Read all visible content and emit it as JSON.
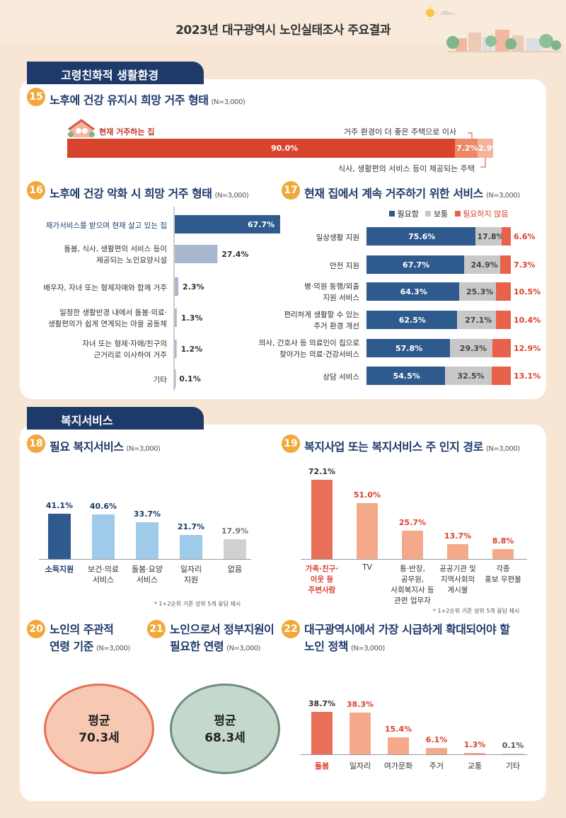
{
  "page_title": "2023년 대구광역시 노인실태조사 주요결과",
  "sections": {
    "s1": "고령친화적 생활환경",
    "s2": "복지서비스"
  },
  "colors": {
    "navy": "#1e3a6a",
    "blue": "#2e5a8e",
    "gray": "#c8c8c8",
    "red": "#e8614b",
    "orange": "#f2a83b",
    "salmon": "#f4a98a",
    "lightblue": "#9ecbea"
  },
  "q15": {
    "num": "15",
    "title": "노후에 건강 유지시 희망 거주 형태",
    "n": "(N=3,000)",
    "label_home": "현재 거주하는 집",
    "label_better": "거주 환경이 더 좋은 주택으로 이사",
    "label_service": "식사, 생활편의 서비스 등이 제공되는 주택",
    "values_text": [
      "90.0%",
      "7.2%",
      "2.9%"
    ]
  },
  "q16": {
    "num": "16",
    "title": "노후에 건강 악화 시 희망 거주 형태",
    "n": "(N=3,000)",
    "items": [
      {
        "label1": "재가서비스를 받으며 현재 살고 있는 집",
        "label2": "",
        "value": "67.7%"
      },
      {
        "label1": "돌봄, 식사, 생활편의 서비스 등이",
        "label2": "제공되는 노인요양시설",
        "value": "27.4%"
      },
      {
        "label1": "배우자, 자녀 또는 형제자매와 함께 거주",
        "label2": "",
        "value": "2.3%"
      },
      {
        "label1": "일정한 생활반경 내에서 돌봄·의료·",
        "label2": "생활편의가 쉽게 연계되는 마을 공동체",
        "value": "1.3%"
      },
      {
        "label1": "자녀 또는 형제·자매/친구의",
        "label2": "근거리로 이사하여 거주",
        "value": "1.2%"
      },
      {
        "label1": "기타",
        "label2": "",
        "value": "0.1%"
      }
    ]
  },
  "q17": {
    "num": "17",
    "title": "현재 집에서 계속 거주하기 위한 서비스",
    "n": "(N=3,000)",
    "legend": [
      "필요함",
      "보통",
      "필요하지 않음"
    ],
    "rows": [
      {
        "label1": "일상생활 지원",
        "label2": "",
        "v": [
          "75.6%",
          "17.8%",
          "6.6%"
        ]
      },
      {
        "label1": "안전 지원",
        "label2": "",
        "v": [
          "67.7%",
          "24.9%",
          "7.3%"
        ]
      },
      {
        "label1": "병·의원 동행/외출",
        "label2": "지원 서비스",
        "v": [
          "64.3%",
          "25.3%",
          "10.5%"
        ]
      },
      {
        "label1": "편리하게 생활할 수 있는",
        "label2": "주거 환경 개선",
        "v": [
          "62.5%",
          "27.1%",
          "10.4%"
        ]
      },
      {
        "label1": "의사, 간호사 등 의료인이 집으로",
        "label2": "찾아가는 의료·건강서비스",
        "v": [
          "57.8%",
          "29.3%",
          "12.9%"
        ]
      },
      {
        "label1": "상담 서비스",
        "label2": "",
        "v": [
          "54.5%",
          "32.5%",
          "13.1%"
        ]
      }
    ]
  },
  "q18": {
    "num": "18",
    "title": "필요 복지서비스",
    "n": "(N=3,000)",
    "items": [
      {
        "label1": "소득지원",
        "label2": "",
        "value": "41.1%"
      },
      {
        "label1": "보건·의료",
        "label2": "서비스",
        "value": "40.6%"
      },
      {
        "label1": "돌봄·요양",
        "label2": "서비스",
        "value": "33.7%"
      },
      {
        "label1": "일자리",
        "label2": "지원",
        "value": "21.7%"
      },
      {
        "label1": "없음",
        "label2": "",
        "value": "17.9%"
      }
    ],
    "note": "* 1+2순위 기준 상위 5개 응답 제시"
  },
  "q19": {
    "num": "19",
    "title": "복지사업 또는 복지서비스 주 인지 경로",
    "n": "(N=3,000)",
    "items": [
      {
        "lines": [
          "가족·친구·",
          "이웃 등",
          "주변사람"
        ],
        "value": "72.1%"
      },
      {
        "lines": [
          "TV",
          "",
          ""
        ],
        "value": "51.0%"
      },
      {
        "lines": [
          "통·반장,",
          "공무원,",
          "사회복지사 등",
          "관련 업무자"
        ],
        "value": "25.7%"
      },
      {
        "lines": [
          "공공기관 및",
          "지역사회의",
          "게시물"
        ],
        "value": "13.7%"
      },
      {
        "lines": [
          "각종",
          "홍보 우편물",
          ""
        ],
        "value": "8.8%"
      }
    ],
    "note": "* 1+2순위 기준 상위 5개 응답 제시"
  },
  "q20": {
    "num": "20",
    "title1": "노인의 주관적",
    "title2": "연령 기준",
    "n": "(N=3,000)",
    "avg_label": "평균",
    "avg_value": "70.3세"
  },
  "q21": {
    "num": "21",
    "title1": "노인으로서 정부지원이",
    "title2": "필요한 연령",
    "n": "(N=3,000)",
    "avg_label": "평균",
    "avg_value": "68.3세"
  },
  "q22": {
    "num": "22",
    "title1": "대구광역시에서 가장 시급하게 확대되어야 할",
    "title2": "노인 정책",
    "n": "(N=3,000)",
    "items": [
      {
        "label": "돌봄",
        "value": "38.7%"
      },
      {
        "label": "일자리",
        "value": "38.3%"
      },
      {
        "label": "여가문화",
        "value": "15.4%"
      },
      {
        "label": "주거",
        "value": "6.1%"
      },
      {
        "label": "교통",
        "value": "1.3%"
      },
      {
        "label": "기타",
        "value": "0.1%"
      }
    ]
  },
  "chart_data": [
    {
      "type": "bar",
      "title": "노후에 건강 유지시 희망 거주 형태",
      "categories": [
        "현재 거주하는 집",
        "거주 환경이 더 좋은 주택으로 이사",
        "식사, 생활편의 서비스 등이 제공되는 주택"
      ],
      "values": [
        90.0,
        7.2,
        2.9
      ],
      "stacked": true
    },
    {
      "type": "bar",
      "title": "노후에 건강 악화 시 희망 거주 형태",
      "values": [
        67.7,
        27.4,
        2.3,
        1.3,
        1.2,
        0.1
      ],
      "orientation": "horizontal"
    },
    {
      "type": "bar",
      "title": "현재 집에서 계속 거주하기 위한 서비스",
      "stacked": true,
      "series": [
        {
          "name": "필요함",
          "values": [
            75.6,
            67.7,
            64.3,
            62.5,
            57.8,
            54.5
          ]
        },
        {
          "name": "보통",
          "values": [
            17.8,
            24.9,
            25.3,
            27.1,
            29.3,
            32.5
          ]
        },
        {
          "name": "필요하지 않음",
          "values": [
            6.6,
            7.3,
            10.5,
            10.4,
            12.9,
            13.1
          ]
        }
      ]
    },
    {
      "type": "bar",
      "title": "필요 복지서비스",
      "values": [
        41.1,
        40.6,
        33.7,
        21.7,
        17.9
      ]
    },
    {
      "type": "bar",
      "title": "복지사업 또는 복지서비스 주 인지 경로",
      "values": [
        72.1,
        51.0,
        25.7,
        13.7,
        8.8
      ]
    },
    {
      "type": "bar",
      "title": "대구광역시에서 가장 시급하게 확대되어야 할 노인 정책",
      "categories": [
        "돌봄",
        "일자리",
        "여가문화",
        "주거",
        "교통",
        "기타"
      ],
      "values": [
        38.7,
        38.3,
        15.4,
        6.1,
        1.3,
        0.1
      ]
    }
  ]
}
